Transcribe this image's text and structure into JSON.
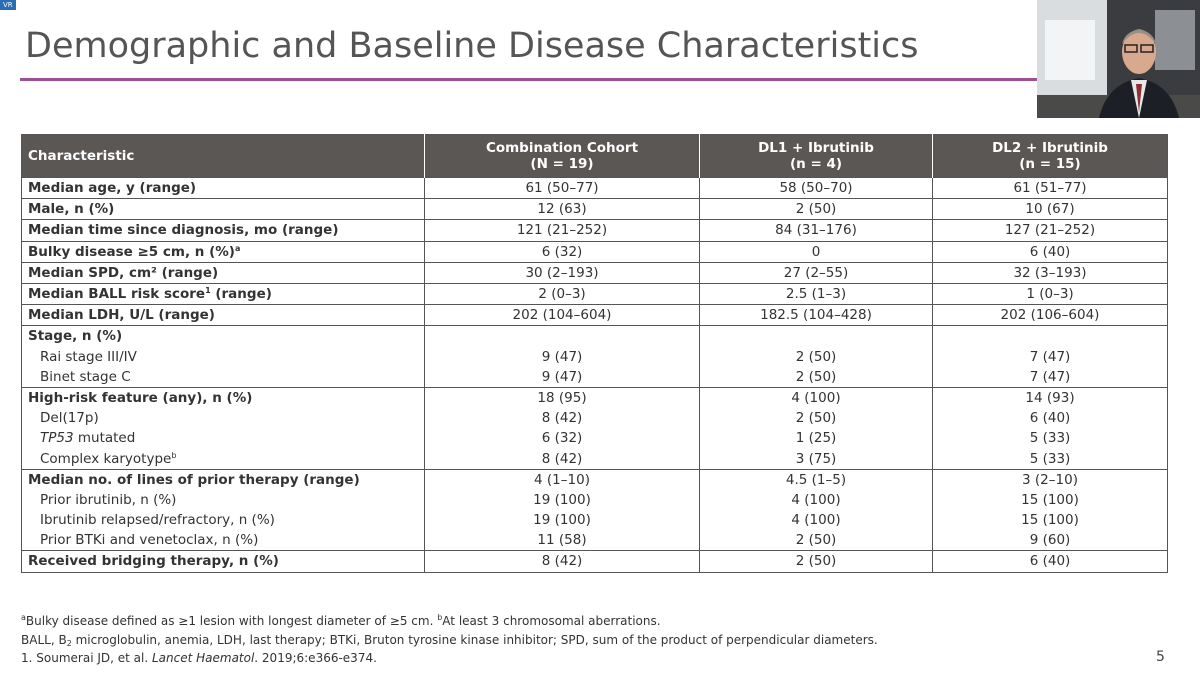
{
  "slide": {
    "tag": "VR",
    "title": "Demographic and Baseline Disease Characteristics",
    "page_number": "5",
    "table": {
      "headers": [
        [
          "Characteristic"
        ],
        [
          "Combination Cohort",
          "(N = 19)"
        ],
        [
          "DL1 + Ibrutinib",
          "(n = 4)"
        ],
        [
          "DL2 + Ibrutinib",
          "(n = 15)"
        ]
      ],
      "groups": [
        {
          "rows": [
            {
              "label": "Median age, y (range)",
              "values": [
                "61 (50–77)",
                "58 (50–70)",
                "61 (51–77)"
              ]
            }
          ]
        },
        {
          "rows": [
            {
              "label": "Male, n (%)",
              "values": [
                "12 (63)",
                "2 (50)",
                "10 (67)"
              ]
            }
          ]
        },
        {
          "rows": [
            {
              "label": "Median time since diagnosis, mo (range)",
              "values": [
                "121 (21–252)",
                "84 (31–176)",
                "127 (21–252)"
              ]
            }
          ]
        },
        {
          "rows": [
            {
              "label": "Bulky disease ≥5 cm, n (%)",
              "sup": "a",
              "values": [
                "6 (32)",
                "0",
                "6 (40)"
              ]
            }
          ]
        },
        {
          "rows": [
            {
              "label": "Median SPD, cm² (range)",
              "values": [
                "30 (2–193)",
                "27 (2–55)",
                "32 (3–193)"
              ]
            }
          ]
        },
        {
          "rows": [
            {
              "label": "Median BALL risk score",
              "sup": "1",
              "after": " (range)",
              "values": [
                "2 (0–3)",
                "2.5 (1–3)",
                "1 (0–3)"
              ]
            }
          ]
        },
        {
          "rows": [
            {
              "label": "Median LDH, U/L (range)",
              "values": [
                "202 (104–604)",
                "182.5 (104–428)",
                "202 (106–604)"
              ]
            }
          ]
        },
        {
          "rows": [
            {
              "label": "Stage, n (%)"
            },
            {
              "label": "Rai stage III/IV",
              "values": [
                "9 (47)",
                "2 (50)",
                "7 (47)"
              ]
            },
            {
              "label": "Binet stage C",
              "values": [
                "9 (47)",
                "2 (50)",
                "7 (47)"
              ]
            }
          ]
        },
        {
          "rows": [
            {
              "label": "High-risk feature (any), n (%)",
              "values": [
                "18 (95)",
                "4 (100)",
                "14 (93)"
              ]
            },
            {
              "label": "Del(17p)",
              "values": [
                "8 (42)",
                "2 (50)",
                "6 (40)"
              ]
            },
            {
              "italic": "TP53",
              "label": " mutated",
              "values": [
                "6 (32)",
                "1 (25)",
                "5 (33)"
              ]
            },
            {
              "label": "Complex karyotype",
              "sup": "b",
              "values": [
                "8 (42)",
                "3 (75)",
                "5 (33)"
              ]
            }
          ]
        },
        {
          "rows": [
            {
              "label": "Median no. of lines of prior therapy (range)",
              "values": [
                "4 (1–10)",
                "4.5 (1–5)",
                "3 (2–10)"
              ]
            },
            {
              "label": "Prior ibrutinib, n (%)",
              "values": [
                "19 (100)",
                "4 (100)",
                "15 (100)"
              ]
            },
            {
              "label": "Ibrutinib relapsed/refractory, n (%)",
              "values": [
                "19 (100)",
                "4 (100)",
                "15 (100)"
              ]
            },
            {
              "label": "Prior BTKi and venetoclax, n (%)",
              "values": [
                "11 (58)",
                "2 (50)",
                "9 (60)"
              ]
            }
          ]
        },
        {
          "rows": [
            {
              "label": "Received bridging therapy, n (%)",
              "values": [
                "8 (42)",
                "2 (50)",
                "6 (40)"
              ]
            }
          ]
        }
      ]
    },
    "footnotes": [
      [
        {
          "text": "a",
          "style": "sup"
        },
        {
          "text": "Bulky disease defined as ≥1 lesion with longest diameter of ≥5 cm. "
        },
        {
          "text": "b",
          "style": "sup"
        },
        {
          "text": "At least 3 chromosomal aberrations."
        }
      ],
      [
        {
          "text": "BALL, B"
        },
        {
          "text": "2",
          "style": "sub"
        },
        {
          "text": " microglobulin, anemia, LDH, last therapy; BTKi, Bruton tyrosine kinase inhibitor; SPD, sum of the product of perpendicular diameters."
        }
      ],
      [
        {
          "text": "1. Soumerai JD, et al. "
        },
        {
          "text": "Lancet Haematol",
          "style": "italic"
        },
        {
          "text": ". 2019;6:e366-e374."
        }
      ]
    ]
  }
}
